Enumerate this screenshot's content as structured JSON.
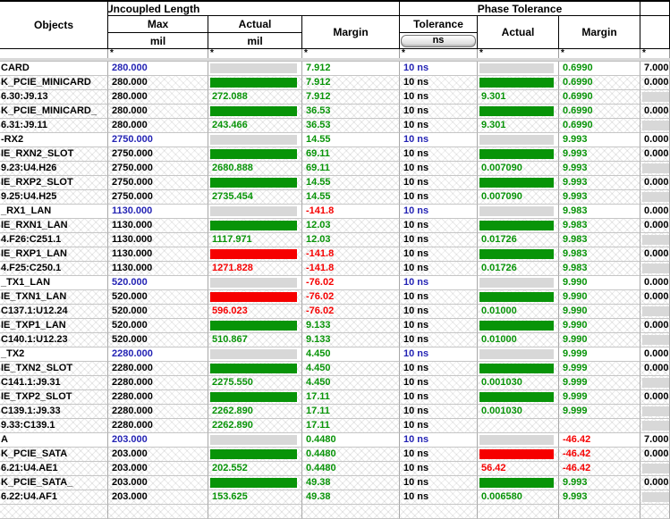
{
  "header": {
    "objects_label": "Objects",
    "uncoupled_group": "Uncoupled Length",
    "phase_group": "Phase Tolerance",
    "max_label": "Max",
    "actual_label": "Actual",
    "margin_label": "Margin",
    "tolerance_label": "Tolerance",
    "mil_unit": "mil",
    "ns_unit": "ns",
    "filter_symbol": "*"
  },
  "colors": {
    "green": "#089408",
    "red": "#f60000",
    "gray": "#d8d8d8",
    "blue": "#2323b4",
    "black": "#000000"
  },
  "rows": [
    {
      "object": "CARD",
      "group": true,
      "max": "280.000",
      "actual": {
        "bar": "gray"
      },
      "margin": {
        "t": "7.912",
        "c": "green"
      },
      "tolerance": "10 ns",
      "phase_actual": {
        "bar": "gray"
      },
      "phase_margin": {
        "t": "0.6990",
        "c": "green"
      },
      "extra": {
        "t": "7.000"
      }
    },
    {
      "object": "K_PCIE_MINICARD",
      "group": false,
      "max": "280.000",
      "actual": {
        "bar": "green"
      },
      "margin": {
        "t": "7.912",
        "c": "green"
      },
      "tolerance": "10 ns",
      "phase_actual": {
        "bar": "green"
      },
      "phase_margin": {
        "t": "0.6990",
        "c": "green"
      },
      "extra": {
        "t": "0.000"
      }
    },
    {
      "object": "6.30:J9.13",
      "group": false,
      "max": "280.000",
      "actual": {
        "t": "272.088",
        "c": "green"
      },
      "margin": {
        "t": "7.912",
        "c": "green"
      },
      "tolerance": "10 ns",
      "phase_actual": {
        "t": "9.301",
        "c": "green"
      },
      "phase_margin": {
        "t": "0.6990",
        "c": "green"
      },
      "extra": {
        "bar": "gray"
      }
    },
    {
      "object": "K_PCIE_MINICARD_",
      "group": false,
      "max": "280.000",
      "actual": {
        "bar": "green"
      },
      "margin": {
        "t": "36.53",
        "c": "green"
      },
      "tolerance": "10 ns",
      "phase_actual": {
        "bar": "green"
      },
      "phase_margin": {
        "t": "0.6990",
        "c": "green"
      },
      "extra": {
        "t": "0.000"
      }
    },
    {
      "object": "6.31:J9.11",
      "group": false,
      "max": "280.000",
      "actual": {
        "t": "243.466",
        "c": "green"
      },
      "margin": {
        "t": "36.53",
        "c": "green"
      },
      "tolerance": "10 ns",
      "phase_actual": {
        "t": "9.301",
        "c": "green"
      },
      "phase_margin": {
        "t": "0.6990",
        "c": "green"
      },
      "extra": {
        "bar": "gray"
      }
    },
    {
      "object": "-RX2",
      "group": true,
      "max": "2750.000",
      "actual": {
        "bar": "gray"
      },
      "margin": {
        "t": "14.55",
        "c": "green"
      },
      "tolerance": "10 ns",
      "phase_actual": {
        "bar": "gray"
      },
      "phase_margin": {
        "t": "9.993",
        "c": "green"
      },
      "extra": {
        "t": "0.000"
      }
    },
    {
      "object": "IE_RXN2_SLOT",
      "group": false,
      "max": "2750.000",
      "actual": {
        "bar": "green"
      },
      "margin": {
        "t": "69.11",
        "c": "green"
      },
      "tolerance": "10 ns",
      "phase_actual": {
        "bar": "green"
      },
      "phase_margin": {
        "t": "9.993",
        "c": "green"
      },
      "extra": {
        "t": "0.000"
      }
    },
    {
      "object": "9.23:U4.H26",
      "group": false,
      "max": "2750.000",
      "actual": {
        "t": "2680.888",
        "c": "green"
      },
      "margin": {
        "t": "69.11",
        "c": "green"
      },
      "tolerance": "10 ns",
      "phase_actual": {
        "t": "0.007090",
        "c": "green"
      },
      "phase_margin": {
        "t": "9.993",
        "c": "green"
      },
      "extra": {
        "bar": "gray"
      }
    },
    {
      "object": "IE_RXP2_SLOT",
      "group": false,
      "max": "2750.000",
      "actual": {
        "bar": "green"
      },
      "margin": {
        "t": "14.55",
        "c": "green"
      },
      "tolerance": "10 ns",
      "phase_actual": {
        "bar": "green"
      },
      "phase_margin": {
        "t": "9.993",
        "c": "green"
      },
      "extra": {
        "t": "0.000"
      }
    },
    {
      "object": "9.25:U4.H25",
      "group": false,
      "max": "2750.000",
      "actual": {
        "t": "2735.454",
        "c": "green"
      },
      "margin": {
        "t": "14.55",
        "c": "green"
      },
      "tolerance": "10 ns",
      "phase_actual": {
        "t": "0.007090",
        "c": "green"
      },
      "phase_margin": {
        "t": "9.993",
        "c": "green"
      },
      "extra": {
        "bar": "gray"
      }
    },
    {
      "object": "_RX1_LAN",
      "group": true,
      "max": "1130.000",
      "actual": {
        "bar": "gray"
      },
      "margin": {
        "t": "-141.8",
        "c": "red"
      },
      "tolerance": "10 ns",
      "phase_actual": {
        "bar": "gray"
      },
      "phase_margin": {
        "t": "9.983",
        "c": "green"
      },
      "extra": {
        "t": "0.000"
      }
    },
    {
      "object": "IE_RXN1_LAN",
      "group": false,
      "max": "1130.000",
      "actual": {
        "bar": "green"
      },
      "margin": {
        "t": "12.03",
        "c": "green"
      },
      "tolerance": "10 ns",
      "phase_actual": {
        "bar": "green"
      },
      "phase_margin": {
        "t": "9.983",
        "c": "green"
      },
      "extra": {
        "t": "0.000"
      }
    },
    {
      "object": "4.F26:C251.1",
      "group": false,
      "max": "1130.000",
      "actual": {
        "t": "1117.971",
        "c": "green"
      },
      "margin": {
        "t": "12.03",
        "c": "green"
      },
      "tolerance": "10 ns",
      "phase_actual": {
        "t": "0.01726",
        "c": "green"
      },
      "phase_margin": {
        "t": "9.983",
        "c": "green"
      },
      "extra": {
        "bar": "gray"
      }
    },
    {
      "object": "IE_RXP1_LAN",
      "group": false,
      "max": "1130.000",
      "actual": {
        "bar": "red"
      },
      "margin": {
        "t": "-141.8",
        "c": "red"
      },
      "tolerance": "10 ns",
      "phase_actual": {
        "bar": "green"
      },
      "phase_margin": {
        "t": "9.983",
        "c": "green"
      },
      "extra": {
        "t": "0.000"
      }
    },
    {
      "object": "4.F25:C250.1",
      "group": false,
      "max": "1130.000",
      "actual": {
        "t": "1271.828",
        "c": "red"
      },
      "margin": {
        "t": "-141.8",
        "c": "red"
      },
      "tolerance": "10 ns",
      "phase_actual": {
        "t": "0.01726",
        "c": "green"
      },
      "phase_margin": {
        "t": "9.983",
        "c": "green"
      },
      "extra": {
        "bar": "gray"
      }
    },
    {
      "object": "_TX1_LAN",
      "group": true,
      "max": "520.000",
      "actual": {
        "bar": "gray"
      },
      "margin": {
        "t": "-76.02",
        "c": "red"
      },
      "tolerance": "10 ns",
      "phase_actual": {
        "bar": "gray"
      },
      "phase_margin": {
        "t": "9.990",
        "c": "green"
      },
      "extra": {
        "t": "0.000"
      }
    },
    {
      "object": "IE_TXN1_LAN",
      "group": false,
      "max": "520.000",
      "actual": {
        "bar": "red"
      },
      "margin": {
        "t": "-76.02",
        "c": "red"
      },
      "tolerance": "10 ns",
      "phase_actual": {
        "bar": "green"
      },
      "phase_margin": {
        "t": "9.990",
        "c": "green"
      },
      "extra": {
        "t": "0.000"
      }
    },
    {
      "object": "C137.1:U12.24",
      "group": false,
      "max": "520.000",
      "actual": {
        "t": "596.023",
        "c": "red"
      },
      "margin": {
        "t": "-76.02",
        "c": "red"
      },
      "tolerance": "10 ns",
      "phase_actual": {
        "t": "0.01000",
        "c": "green"
      },
      "phase_margin": {
        "t": "9.990",
        "c": "green"
      },
      "extra": {
        "bar": "gray"
      }
    },
    {
      "object": "IE_TXP1_LAN",
      "group": false,
      "max": "520.000",
      "actual": {
        "bar": "green"
      },
      "margin": {
        "t": "9.133",
        "c": "green"
      },
      "tolerance": "10 ns",
      "phase_actual": {
        "bar": "green"
      },
      "phase_margin": {
        "t": "9.990",
        "c": "green"
      },
      "extra": {
        "t": "0.000"
      }
    },
    {
      "object": "C140.1:U12.23",
      "group": false,
      "max": "520.000",
      "actual": {
        "t": "510.867",
        "c": "green"
      },
      "margin": {
        "t": "9.133",
        "c": "green"
      },
      "tolerance": "10 ns",
      "phase_actual": {
        "t": "0.01000",
        "c": "green"
      },
      "phase_margin": {
        "t": "9.990",
        "c": "green"
      },
      "extra": {
        "bar": "gray"
      }
    },
    {
      "object": "_TX2",
      "group": true,
      "max": "2280.000",
      "actual": {
        "bar": "gray"
      },
      "margin": {
        "t": "4.450",
        "c": "green"
      },
      "tolerance": "10 ns",
      "phase_actual": {
        "bar": "gray"
      },
      "phase_margin": {
        "t": "9.999",
        "c": "green"
      },
      "extra": {
        "t": "0.000"
      }
    },
    {
      "object": "IE_TXN2_SLOT",
      "group": false,
      "max": "2280.000",
      "actual": {
        "bar": "green"
      },
      "margin": {
        "t": "4.450",
        "c": "green"
      },
      "tolerance": "10 ns",
      "phase_actual": {
        "bar": "green"
      },
      "phase_margin": {
        "t": "9.999",
        "c": "green"
      },
      "extra": {
        "t": "0.000"
      }
    },
    {
      "object": "C141.1:J9.31",
      "group": false,
      "max": "2280.000",
      "actual": {
        "t": "2275.550",
        "c": "green"
      },
      "margin": {
        "t": "4.450",
        "c": "green"
      },
      "tolerance": "10 ns",
      "phase_actual": {
        "t": "0.001030",
        "c": "green"
      },
      "phase_margin": {
        "t": "9.999",
        "c": "green"
      },
      "extra": {
        "bar": "gray"
      }
    },
    {
      "object": "IE_TXP2_SLOT",
      "group": false,
      "max": "2280.000",
      "actual": {
        "bar": "green"
      },
      "margin": {
        "t": "17.11",
        "c": "green"
      },
      "tolerance": "10 ns",
      "phase_actual": {
        "bar": "green"
      },
      "phase_margin": {
        "t": "9.999",
        "c": "green"
      },
      "extra": {
        "t": "0.000"
      }
    },
    {
      "object": "C139.1:J9.33",
      "group": false,
      "max": "2280.000",
      "actual": {
        "t": "2262.890",
        "c": "green"
      },
      "margin": {
        "t": "17.11",
        "c": "green"
      },
      "tolerance": "10 ns",
      "phase_actual": {
        "t": "0.001030",
        "c": "green"
      },
      "phase_margin": {
        "t": "9.999",
        "c": "green"
      },
      "extra": {
        "bar": "gray"
      }
    },
    {
      "object": "9.33:C139.1",
      "group": false,
      "max": "2280.000",
      "actual": {
        "t": "2262.890",
        "c": "green"
      },
      "margin": {
        "t": "17.11",
        "c": "green"
      },
      "tolerance": "10 ns",
      "phase_actual": {},
      "phase_margin": {},
      "extra": {
        "bar": "gray"
      }
    },
    {
      "object": "A",
      "group": true,
      "max": "203.000",
      "actual": {
        "bar": "gray"
      },
      "margin": {
        "t": "0.4480",
        "c": "green"
      },
      "tolerance": "10 ns",
      "phase_actual": {
        "bar": "gray"
      },
      "phase_margin": {
        "t": "-46.42",
        "c": "red"
      },
      "extra": {
        "t": "7.000"
      }
    },
    {
      "object": "K_PCIE_SATA",
      "group": false,
      "max": "203.000",
      "actual": {
        "bar": "green"
      },
      "margin": {
        "t": "0.4480",
        "c": "green"
      },
      "tolerance": "10 ns",
      "phase_actual": {
        "bar": "red"
      },
      "phase_margin": {
        "t": "-46.42",
        "c": "red"
      },
      "extra": {
        "t": "0.000"
      }
    },
    {
      "object": "6.21:U4.AE1",
      "group": false,
      "max": "203.000",
      "actual": {
        "t": "202.552",
        "c": "green"
      },
      "margin": {
        "t": "0.4480",
        "c": "green"
      },
      "tolerance": "10 ns",
      "phase_actual": {
        "t": "56.42",
        "c": "red"
      },
      "phase_margin": {
        "t": "-46.42",
        "c": "red"
      },
      "extra": {
        "bar": "gray"
      }
    },
    {
      "object": "K_PCIE_SATA_",
      "group": false,
      "max": "203.000",
      "actual": {
        "bar": "green"
      },
      "margin": {
        "t": "49.38",
        "c": "green"
      },
      "tolerance": "10 ns",
      "phase_actual": {
        "bar": "green"
      },
      "phase_margin": {
        "t": "9.993",
        "c": "green"
      },
      "extra": {
        "t": "0.000"
      }
    },
    {
      "object": "6.22:U4.AF1",
      "group": false,
      "max": "203.000",
      "actual": {
        "t": "153.625",
        "c": "green"
      },
      "margin": {
        "t": "49.38",
        "c": "green"
      },
      "tolerance": "10 ns",
      "phase_actual": {
        "t": "0.006580",
        "c": "green"
      },
      "phase_margin": {
        "t": "9.993",
        "c": "green"
      },
      "extra": {
        "bar": "gray"
      }
    }
  ]
}
